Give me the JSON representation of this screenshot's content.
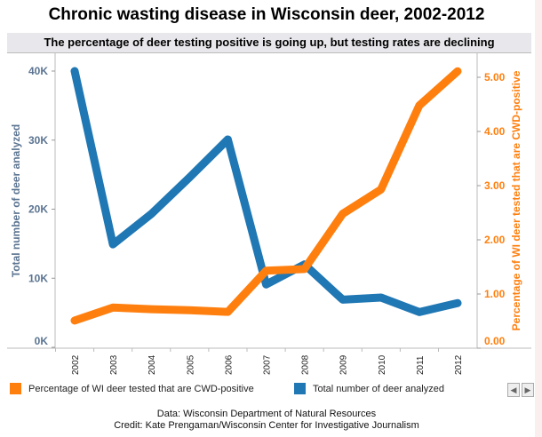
{
  "title": "Chronic wasting disease in Wisconsin deer, 2002-2012",
  "subtitle": "The percentage of deer testing positive is going up, but testing rates are declining",
  "chart_data": {
    "type": "line",
    "categories": [
      "2002",
      "2003",
      "2004",
      "2005",
      "2006",
      "2007",
      "2008",
      "2009",
      "2010",
      "2011",
      "2012"
    ],
    "series": [
      {
        "name": "Total number of deer analyzed",
        "axis": "left",
        "color": "#1f77b4",
        "values": [
          40000,
          14900,
          19300,
          24600,
          30100,
          9100,
          12000,
          6900,
          7200,
          5100,
          6400
        ]
      },
      {
        "name": "Percentage of WI deer tested that are CWD-positive",
        "axis": "right",
        "color": "#ff7f0e",
        "values": [
          0.51,
          0.75,
          0.72,
          0.7,
          0.67,
          1.43,
          1.46,
          2.48,
          2.93,
          4.48,
          5.11
        ]
      }
    ],
    "ylabel_left": "Total number of deer analyzed",
    "ylabel_right": "Percentage of WI deer tested that are CWD-positive",
    "yticks_left": [
      "0K",
      "10K",
      "20K",
      "30K",
      "40K"
    ],
    "ylim_left": [
      0,
      40000
    ],
    "yticks_right": [
      "0.00",
      "1.00",
      "2.00",
      "3.00",
      "4.00",
      "5.00"
    ],
    "ylim_right": [
      0,
      5.1
    ],
    "grid": false,
    "legend_position": "bottom"
  },
  "legend": [
    {
      "label": "Percentage of WI deer tested that are CWD-positive",
      "color": "#ff7f0e"
    },
    {
      "label": "Total number of deer analyzed",
      "color": "#1f77b4"
    }
  ],
  "nav": {
    "prev": "◀",
    "next": "▶"
  },
  "footer": {
    "data": "Data: Wisconsin Department of Natural Resources",
    "credit": "Credit: Kate Prengaman/Wisconsin Center for Investigative Journalism"
  }
}
